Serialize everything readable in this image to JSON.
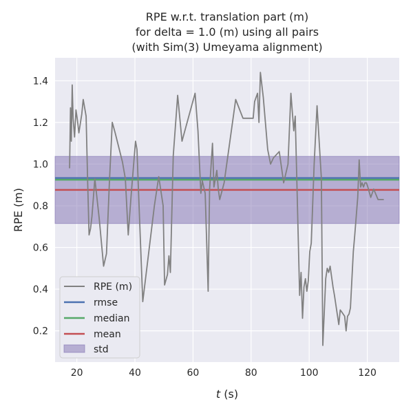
{
  "chart_data": {
    "type": "line",
    "title_lines": [
      "RPE w.r.t. translation part (m)",
      "for delta = 1.0 (m) using all pairs",
      "(with Sim(3) Umeyama alignment)"
    ],
    "xlabel_var": "t",
    "xlabel_unit": " (s)",
    "ylabel": "RPE (m)",
    "xlim": [
      12.5,
      131
    ],
    "ylim": [
      0.05,
      1.51
    ],
    "xticks": [
      20,
      40,
      60,
      80,
      100,
      120
    ],
    "yticks": [
      0.2,
      0.4,
      0.6,
      0.8,
      1.0,
      1.2,
      1.4
    ],
    "ytick_labels": [
      "0.2",
      "0.4",
      "0.6",
      "0.8",
      "1.0",
      "1.2",
      "1.4"
    ],
    "grid": true,
    "legend_position": "lower-left",
    "colors": {
      "background": "#eaeaf2",
      "series": "#808080",
      "rmse": "#4c72b0",
      "median": "#55a868",
      "mean": "#c44e52",
      "std": "#8172b2"
    },
    "series": [
      {
        "name": "RPE (m)",
        "x": [
          17.5,
          17.8,
          18.1,
          18.4,
          18.7,
          19.2,
          19.7,
          20.2,
          20.7,
          21.7,
          22.2,
          23.2,
          23.7,
          24.2,
          24.7,
          25.2,
          26.2,
          27.7,
          29.2,
          30.2,
          31.2,
          32.2,
          33.2,
          35.7,
          36.7,
          37.7,
          38.7,
          40.2,
          40.7,
          41.2,
          42.7,
          46.7,
          48.2,
          49.7,
          50.2,
          51.2,
          51.7,
          52.2,
          53.2,
          54.7,
          56.2,
          60.7,
          61.7,
          62.7,
          63.2,
          64.2,
          65.2,
          65.7,
          66.7,
          67.2,
          68.2,
          68.7,
          69.2,
          70.7,
          74.7,
          77.2,
          80.7,
          81.2,
          82.2,
          82.7,
          83.2,
          84.2,
          85.7,
          86.7,
          87.7,
          89.7,
          91.2,
          92.7,
          93.7,
          94.7,
          95.2,
          95.7,
          96.7,
          97.2,
          97.7,
          98.2,
          98.7,
          99.2,
          99.7,
          100.2,
          100.7,
          101.7,
          102.7,
          104.2,
          104.7,
          105.7,
          106.2,
          106.7,
          107.2,
          107.7,
          108.2,
          108.7,
          110.2,
          110.7,
          111.2,
          112.2,
          112.7,
          113.2,
          113.7,
          114.2,
          115.2,
          115.7,
          116.7,
          117.2,
          117.7,
          118.2,
          118.7,
          119.2,
          119.7,
          120.2,
          121.2,
          122.2,
          123.7,
          125.7
        ],
        "values": [
          0.98,
          1.27,
          1.11,
          1.38,
          1.22,
          1.13,
          1.26,
          1.21,
          1.15,
          1.24,
          1.31,
          1.23,
          0.92,
          0.66,
          0.69,
          0.75,
          0.93,
          0.74,
          0.51,
          0.57,
          0.91,
          1.2,
          1.15,
          1.01,
          0.93,
          0.66,
          0.85,
          1.11,
          1.07,
          0.88,
          0.34,
          0.8,
          0.94,
          0.8,
          0.42,
          0.47,
          0.56,
          0.48,
          1.04,
          1.33,
          1.11,
          1.34,
          1.16,
          0.86,
          0.92,
          0.86,
          0.39,
          0.88,
          1.1,
          0.89,
          0.97,
          0.88,
          0.83,
          0.91,
          1.31,
          1.22,
          1.22,
          1.3,
          1.34,
          1.2,
          1.44,
          1.32,
          1.07,
          1.0,
          1.03,
          1.06,
          0.91,
          1.0,
          1.34,
          1.16,
          1.23,
          0.94,
          0.37,
          0.48,
          0.26,
          0.41,
          0.45,
          0.39,
          0.44,
          0.58,
          0.62,
          1.0,
          1.28,
          0.93,
          0.13,
          0.45,
          0.5,
          0.48,
          0.51,
          0.46,
          0.41,
          0.37,
          0.23,
          0.3,
          0.29,
          0.27,
          0.2,
          0.27,
          0.28,
          0.31,
          0.58,
          0.66,
          0.84,
          1.02,
          0.89,
          0.91,
          0.89,
          0.91,
          0.91,
          0.89,
          0.84,
          0.88,
          0.83,
          0.83
        ]
      }
    ],
    "stats": {
      "rmse": 0.933,
      "median": 0.925,
      "mean": 0.876,
      "std": 0.161
    },
    "legend": [
      "RPE (m)",
      "rmse",
      "median",
      "mean",
      "std"
    ]
  }
}
